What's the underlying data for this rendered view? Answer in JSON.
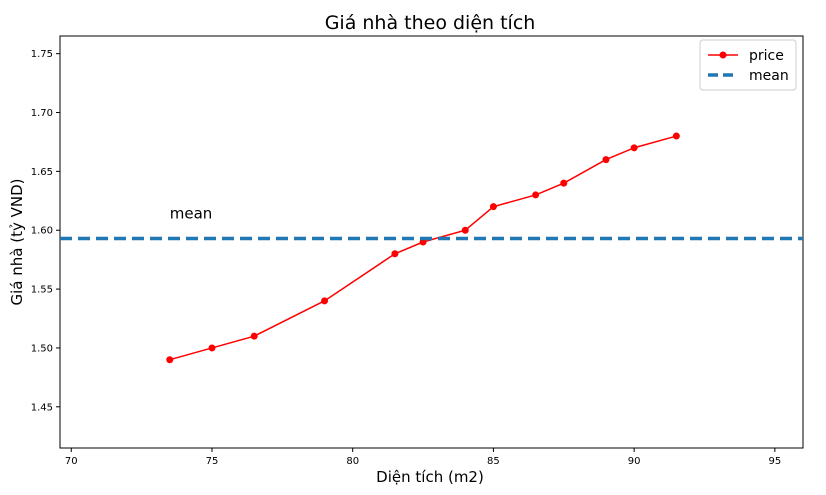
{
  "chart_data": {
    "type": "line",
    "title": "Giá nhà theo diện tích",
    "xlabel": "Diện tích (m2)",
    "ylabel": "Giá nhà (tỷ VND)",
    "xlim": [
      69.6,
      96.0
    ],
    "ylim": [
      1.415,
      1.765
    ],
    "xticks": [
      70,
      75,
      80,
      85,
      90,
      95
    ],
    "yticks": [
      1.45,
      1.5,
      1.55,
      1.6,
      1.65,
      1.7,
      1.75
    ],
    "xtick_labels": [
      "70",
      "75",
      "80",
      "85",
      "90",
      "95"
    ],
    "ytick_labels": [
      "1.45",
      "1.50",
      "1.55",
      "1.60",
      "1.65",
      "1.70",
      "1.75"
    ],
    "grid": false,
    "legend_position": "top-right",
    "series": [
      {
        "name": "price",
        "color": "#ff0000",
        "marker": "circle",
        "x": [
          73.5,
          75,
          76.5,
          79,
          81.5,
          82.5,
          84,
          85,
          86.5,
          87.5,
          89,
          90,
          91.5
        ],
        "y": [
          1.49,
          1.5,
          1.51,
          1.54,
          1.58,
          1.59,
          1.6,
          1.62,
          1.63,
          1.64,
          1.66,
          1.67,
          1.68
        ]
      },
      {
        "name": "mean",
        "color": "#1f77b4",
        "style": "dashed",
        "y": 1.593
      }
    ],
    "annotations": [
      {
        "text": "mean",
        "x": 73.5,
        "y": 1.61
      }
    ]
  }
}
